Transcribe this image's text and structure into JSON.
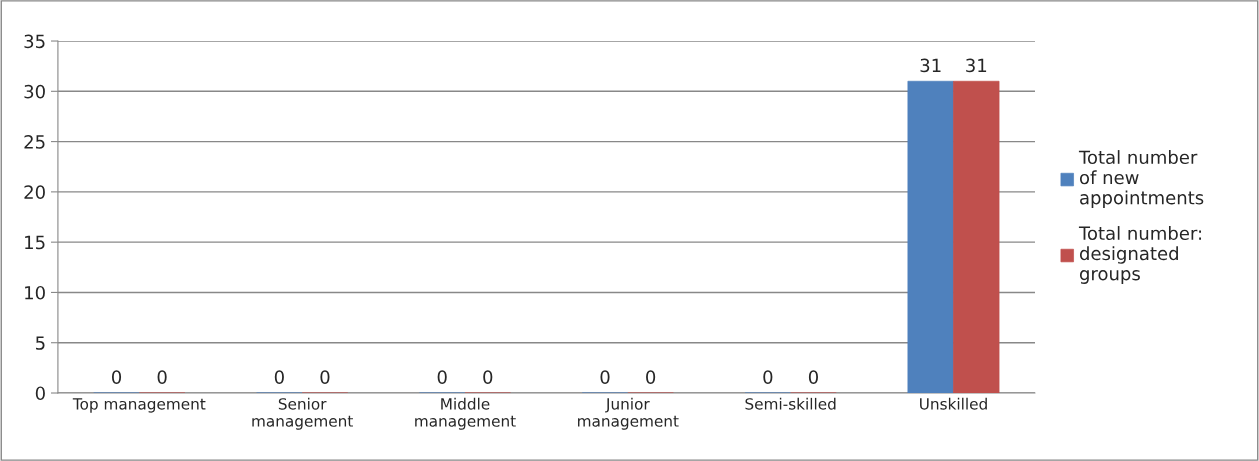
{
  "chart_data": {
    "type": "bar",
    "categories": [
      "Top management",
      "Senior management",
      "Middle management",
      "Junior management",
      "Semi-skilled",
      "Unskilled"
    ],
    "series": [
      {
        "name": "Total number of new appointments",
        "color": "#4f81bd",
        "values": [
          0,
          0,
          0,
          0,
          0,
          31
        ]
      },
      {
        "name": "Total number: designated groups",
        "color": "#c0504d",
        "values": [
          0,
          0,
          0,
          0,
          0,
          31
        ]
      }
    ],
    "ylim": [
      0,
      35
    ],
    "yticks": [
      0,
      5,
      10,
      15,
      20,
      25,
      30,
      35
    ],
    "grid": "y",
    "legend": "right",
    "data_labels": true
  }
}
